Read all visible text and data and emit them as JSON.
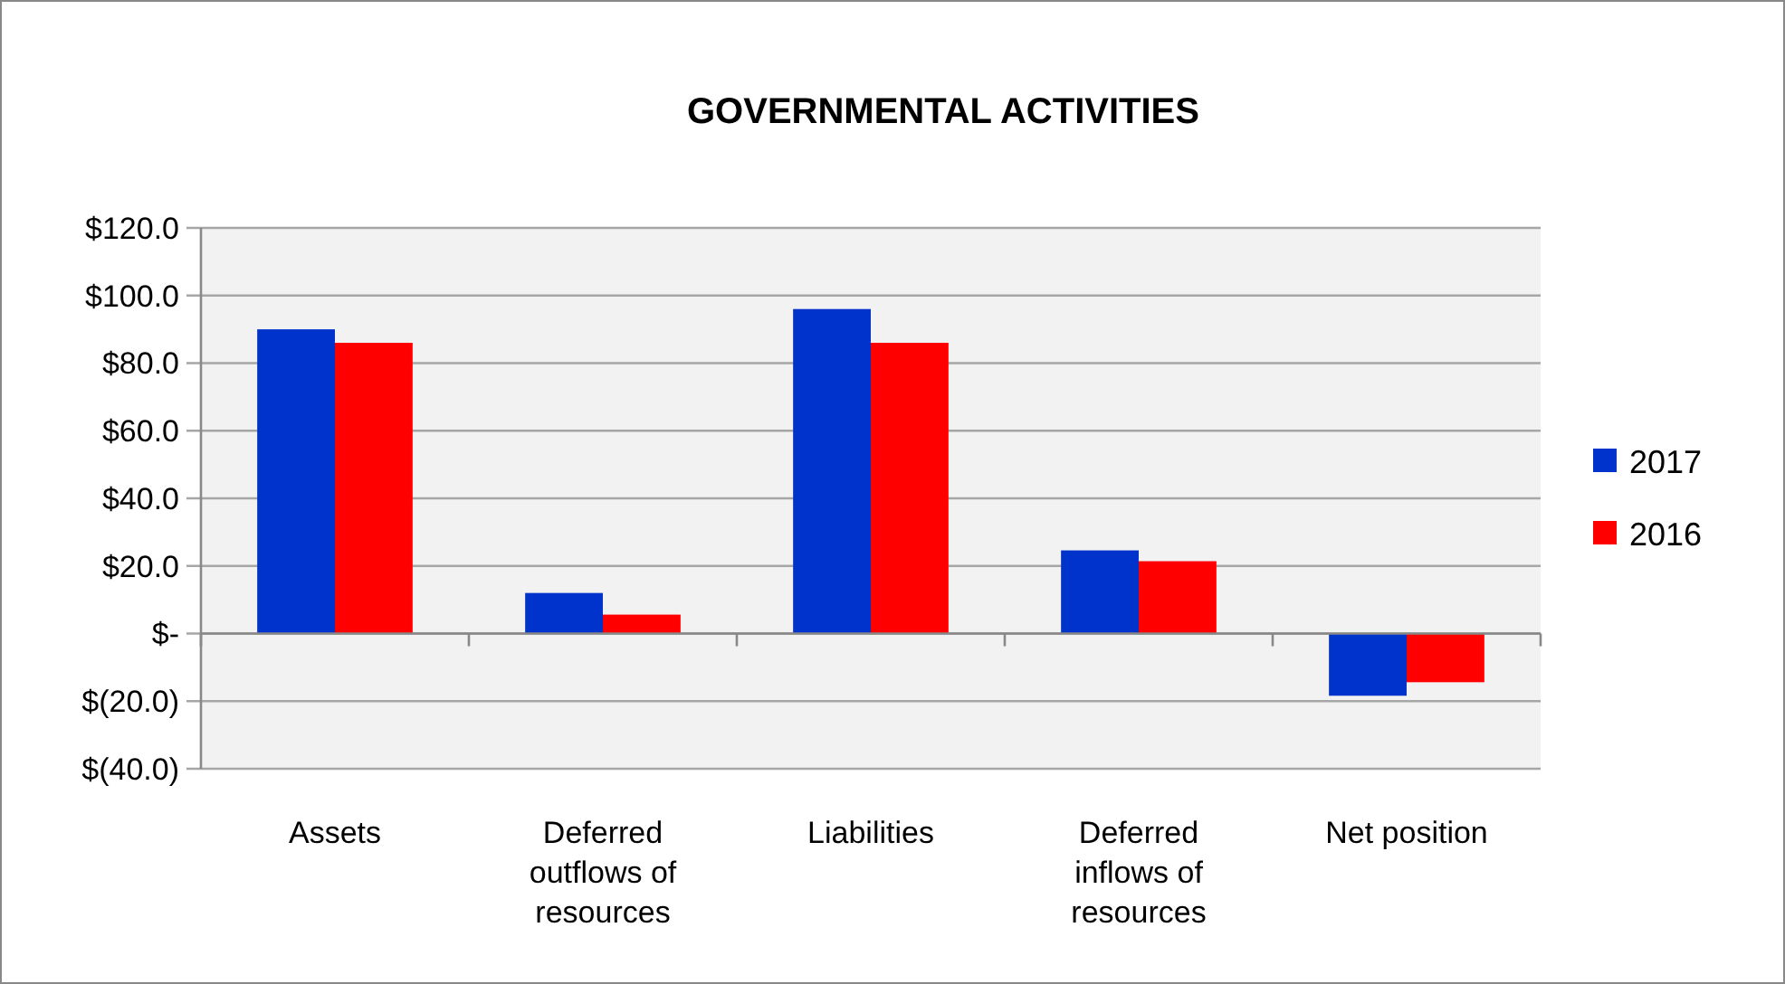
{
  "chart_data": {
    "type": "bar",
    "title": "GOVERNMENTAL ACTIVITIES",
    "categories": [
      "Assets",
      "Deferred outflows of resources",
      "Liabilities",
      "Deferred inflows of resources",
      "Net position"
    ],
    "series": [
      {
        "name": "2017",
        "color": "#0033cc",
        "values": [
          90,
          12,
          96,
          24.6,
          -18.4
        ]
      },
      {
        "name": "2016",
        "color": "#ff0000",
        "values": [
          86,
          5.6,
          86,
          21.4,
          -14.4
        ]
      }
    ],
    "ylim": [
      -40,
      120
    ],
    "yticks": [
      {
        "value": -40,
        "label": "$(40.0)"
      },
      {
        "value": -20,
        "label": "$(20.0)"
      },
      {
        "value": 0,
        "label": "$-"
      },
      {
        "value": 20,
        "label": "$20.0"
      },
      {
        "value": 40,
        "label": "$40.0"
      },
      {
        "value": 60,
        "label": "$60.0"
      },
      {
        "value": 80,
        "label": "$80.0"
      },
      {
        "value": 100,
        "label": "$100.0"
      },
      {
        "value": 120,
        "label": "$120.0"
      }
    ],
    "grid": "y",
    "legend": "right"
  }
}
